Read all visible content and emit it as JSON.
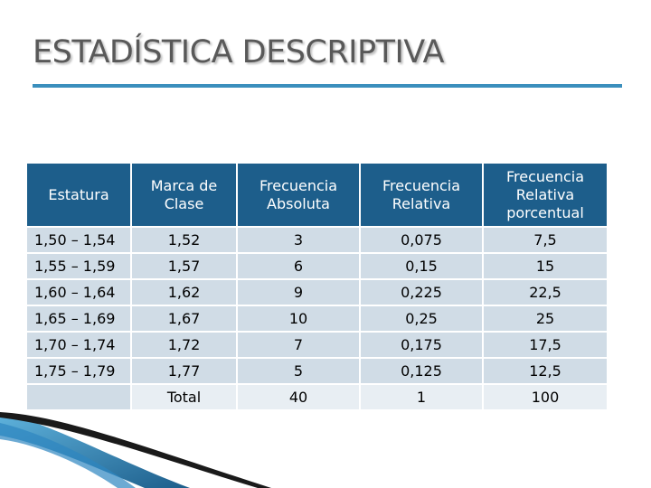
{
  "slide": {
    "title": "ESTADÍSTICA DESCRIPTIVA"
  },
  "table": {
    "headers": [
      "Estatura",
      "Marca de Clase",
      "Frecuencia Absoluta",
      "Frecuencia Relativa",
      "Frecuencia Relativa porcentual"
    ],
    "rows": [
      [
        "1,50 – 1,54",
        "1,52",
        "3",
        "0,075",
        "7,5"
      ],
      [
        "1,55 – 1,59",
        "1,57",
        "6",
        "0,15",
        "15"
      ],
      [
        "1,60 – 1,64",
        "1,62",
        "9",
        "0,225",
        "22,5"
      ],
      [
        "1,65 – 1,69",
        "1,67",
        "10",
        "0,25",
        "25"
      ],
      [
        "1,70 – 1,74",
        "1,72",
        "7",
        "0,175",
        "17,5"
      ],
      [
        "1,75 – 1,79",
        "1,77",
        "5",
        "0,125",
        "12,5"
      ]
    ],
    "total_row": [
      "",
      "Total",
      "40",
      "1",
      "100"
    ]
  },
  "colors": {
    "header_bg": "#1d5e8b",
    "row_bg": "#d0dce6",
    "accent_rule": "#3b8fbd"
  }
}
